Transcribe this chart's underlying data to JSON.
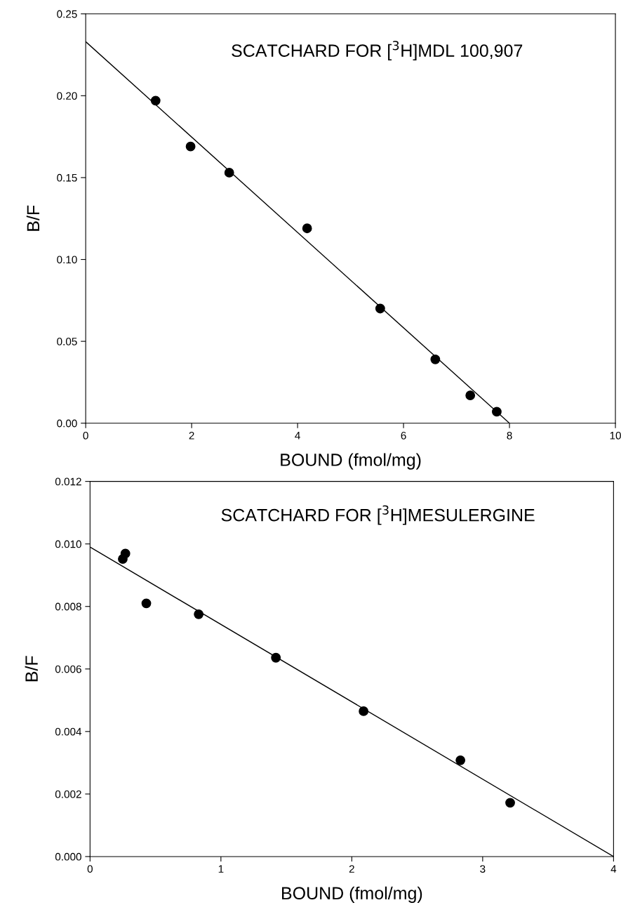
{
  "chart_data": [
    {
      "type": "scatter",
      "xlabel": "BOUND (fmol/mg)",
      "ylabel": "B/F",
      "annotations": [
        "SCATCHARD FOR [$^{3}$H]MDL 100,907"
      ],
      "xlim": [
        0,
        10
      ],
      "ylim": [
        0,
        0.25
      ],
      "xticks": [
        0,
        2,
        4,
        6,
        8,
        10
      ],
      "yticks": [
        {
          "value": 0,
          "label": "0.00"
        },
        0.05,
        {
          "value": 0.1,
          "label": "0.10"
        },
        0.15,
        {
          "value": 0.2,
          "label": "0.20"
        },
        0.25
      ],
      "grid": false,
      "legend": false,
      "series": [
        {
          "marker": "circle",
          "color": "#000000",
          "x": [
            1.32,
            1.98,
            2.71,
            4.18,
            5.56,
            6.6,
            7.26,
            7.76
          ],
          "values": [
            0.197,
            0.169,
            0.153,
            0.119,
            0.07,
            0.039,
            0.017,
            0.007
          ]
        },
        {
          "type": "line",
          "color": "#000000",
          "x": [
            0,
            8
          ],
          "values": [
            0.233,
            0
          ]
        }
      ]
    },
    {
      "type": "scatter",
      "xlabel": "BOUND (fmol/mg)",
      "ylabel": "B/F",
      "annotations": [
        "SCATCHARD FOR [$^{3}$H]MESULERGINE"
      ],
      "xlim": [
        0,
        4
      ],
      "ylim": [
        0,
        0.012
      ],
      "xticks": [
        0,
        1,
        2,
        3,
        4
      ],
      "yticks": [
        {
          "value": 0,
          "label": "0.000"
        },
        {
          "value": 0.002,
          "label": "0.002"
        },
        {
          "value": 0.004,
          "label": "0.004"
        },
        {
          "value": 0.006,
          "label": "0.006"
        },
        {
          "value": 0.008,
          "label": "0.008"
        },
        {
          "value": 0.01,
          "label": "0.010"
        },
        {
          "value": 0.012,
          "label": "0.012"
        }
      ],
      "grid": false,
      "legend": false,
      "series": [
        {
          "marker": "circle",
          "color": "#000000",
          "x": [
            0.25,
            0.27,
            0.43,
            0.83,
            1.42,
            2.09,
            2.83,
            3.21
          ],
          "values": [
            0.00952,
            0.00969,
            0.0081,
            0.00775,
            0.00636,
            0.00465,
            0.00308,
            0.00172
          ]
        },
        {
          "type": "line",
          "color": "#000000",
          "x": [
            0,
            4
          ],
          "values": [
            0.0099,
            0
          ]
        }
      ]
    }
  ]
}
